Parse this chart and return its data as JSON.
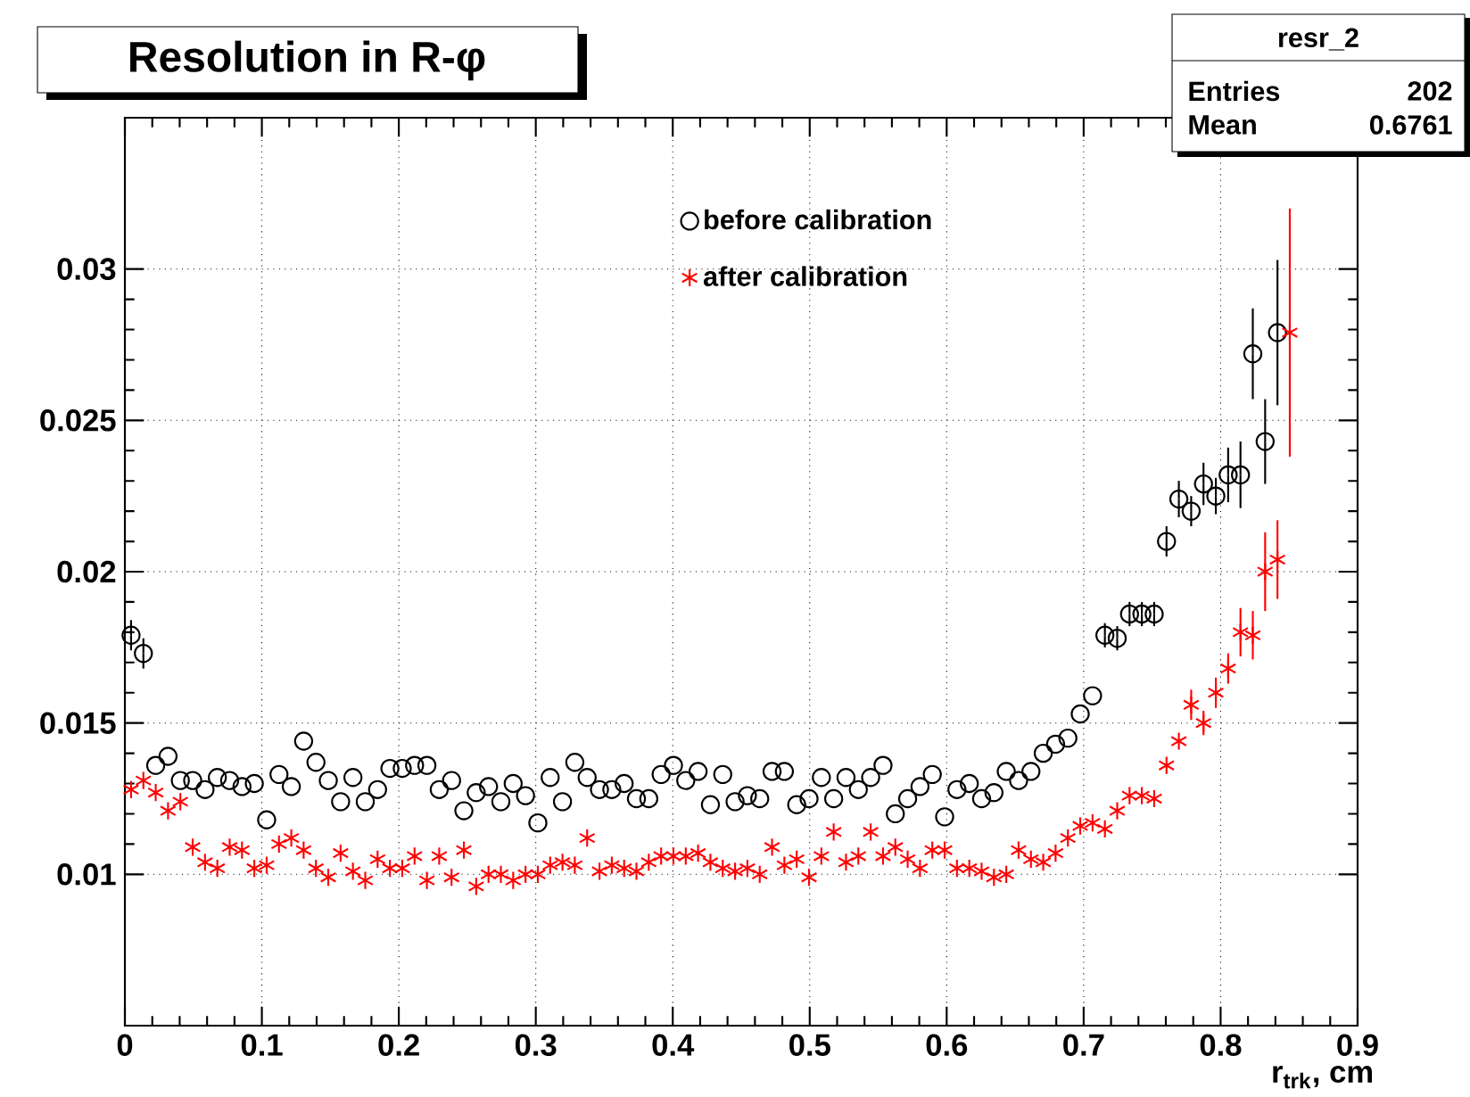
{
  "chart_data": {
    "type": "scatter",
    "title": "Resolution in R-φ",
    "xlabel": "r$_{trk}$, cm",
    "annotations": [
      "resr_2",
      "Entries",
      "202",
      "Mean",
      "0.6761"
    ],
    "x": [
      0.0045,
      0.0135,
      0.0225,
      0.0315,
      0.0405,
      0.0495,
      0.0585,
      0.0675,
      0.0765,
      0.0855,
      0.0945,
      0.1035,
      0.1125,
      0.1215,
      0.1305,
      0.1395,
      0.1485,
      0.1575,
      0.1665,
      0.1755,
      0.1845,
      0.1935,
      0.2025,
      0.2115,
      0.2205,
      0.2295,
      0.2385,
      0.2475,
      0.2565,
      0.2655,
      0.2745,
      0.2835,
      0.2925,
      0.3015,
      0.3105,
      0.3195,
      0.3285,
      0.3375,
      0.3465,
      0.3555,
      0.3645,
      0.3735,
      0.3825,
      0.3915,
      0.4005,
      0.4095,
      0.4185,
      0.4275,
      0.4365,
      0.4455,
      0.4545,
      0.4635,
      0.4725,
      0.4815,
      0.4905,
      0.4995,
      0.5085,
      0.5175,
      0.5265,
      0.5355,
      0.5445,
      0.5535,
      0.5625,
      0.5715,
      0.5805,
      0.5895,
      0.5985,
      0.6075,
      0.6165,
      0.6255,
      0.6345,
      0.6435,
      0.6525,
      0.6615,
      0.6705,
      0.6795,
      0.6885,
      0.6975,
      0.7065,
      0.7155,
      0.7245,
      0.7335,
      0.7425,
      0.7515,
      0.7605,
      0.7695,
      0.7785,
      0.7875,
      0.7965,
      0.8055,
      0.8145,
      0.8235,
      0.8325,
      0.8415,
      0.8505
    ],
    "series": [
      {
        "name": "before calibration",
        "color": "#000000",
        "marker": "circle",
        "values": [
          0.0179,
          0.0173,
          0.0136,
          0.0139,
          0.0131,
          0.0131,
          0.0128,
          0.0132,
          0.0131,
          0.0129,
          0.013,
          0.0118,
          0.0133,
          0.0129,
          0.0144,
          0.0137,
          0.0131,
          0.0124,
          0.0132,
          0.0124,
          0.0128,
          0.0135,
          0.0135,
          0.0136,
          0.0136,
          0.0128,
          0.0131,
          0.0121,
          0.0127,
          0.0129,
          0.0124,
          0.013,
          0.0126,
          0.0117,
          0.0132,
          0.0124,
          0.0137,
          0.0132,
          0.0128,
          0.0128,
          0.013,
          0.0125,
          0.0125,
          0.0133,
          0.0136,
          0.0131,
          0.0134,
          0.0123,
          0.0133,
          0.0124,
          0.0126,
          0.0125,
          0.0134,
          0.0134,
          0.0123,
          0.0125,
          0.0132,
          0.0125,
          0.0132,
          0.0128,
          0.0132,
          0.0136,
          0.012,
          0.0125,
          0.0129,
          0.0133,
          0.0119,
          0.0128,
          0.013,
          0.0125,
          0.0127,
          0.0134,
          0.0131,
          0.0134,
          0.014,
          0.0143,
          0.0145,
          0.0153,
          0.0159,
          0.0179,
          0.0178,
          0.0186,
          0.0186,
          0.0186,
          0.021,
          0.0224,
          0.022,
          0.0229,
          0.0225,
          0.0232,
          0.0232,
          0.0272,
          0.0243,
          0.0279,
          null
        ],
        "errors": [
          0.0005,
          0.0005,
          null,
          null,
          null,
          null,
          null,
          null,
          null,
          null,
          null,
          null,
          null,
          null,
          null,
          null,
          null,
          null,
          null,
          null,
          null,
          null,
          null,
          null,
          null,
          null,
          null,
          null,
          null,
          null,
          null,
          null,
          null,
          null,
          null,
          null,
          null,
          null,
          null,
          null,
          null,
          null,
          null,
          null,
          null,
          null,
          null,
          null,
          null,
          null,
          null,
          null,
          null,
          null,
          null,
          null,
          null,
          null,
          null,
          null,
          null,
          null,
          null,
          null,
          null,
          null,
          null,
          null,
          null,
          null,
          null,
          null,
          null,
          null,
          null,
          null,
          null,
          null,
          null,
          0.0004,
          0.0004,
          0.0004,
          0.0004,
          0.0004,
          0.0005,
          0.0006,
          0.0005,
          0.0007,
          0.0006,
          0.0009,
          0.0011,
          0.0015,
          0.0014,
          0.0024,
          null
        ]
      },
      {
        "name": "after calibration",
        "color": "#ff0000",
        "marker": "cross",
        "values": [
          0.0128,
          0.0131,
          0.0127,
          0.0121,
          0.0124,
          0.0109,
          0.0104,
          0.0102,
          0.0109,
          0.0108,
          0.0102,
          0.0103,
          0.011,
          0.0112,
          0.0108,
          0.0102,
          0.0099,
          0.0107,
          0.0101,
          0.0098,
          0.0105,
          0.0102,
          0.0102,
          0.0106,
          0.0098,
          0.0106,
          0.0099,
          0.0108,
          0.0096,
          0.01,
          0.01,
          0.0098,
          0.01,
          0.01,
          0.0103,
          0.0104,
          0.0103,
          0.0112,
          0.0101,
          0.0103,
          0.0102,
          0.0101,
          0.0104,
          0.0106,
          0.0106,
          0.0106,
          0.0107,
          0.0104,
          0.0102,
          0.0101,
          0.0102,
          0.01,
          0.0109,
          0.0103,
          0.0105,
          0.0099,
          0.0106,
          0.0114,
          0.0104,
          0.0106,
          0.0114,
          0.0106,
          0.0109,
          0.0105,
          0.0102,
          0.0108,
          0.0108,
          0.0102,
          0.0102,
          0.0101,
          0.0099,
          0.01,
          0.0108,
          0.0105,
          0.0104,
          0.0107,
          0.0112,
          0.0116,
          0.0117,
          0.0115,
          0.0121,
          0.0126,
          0.0126,
          0.0125,
          0.0136,
          0.0144,
          0.0156,
          0.015,
          0.016,
          0.0168,
          0.018,
          0.0179,
          0.02,
          0.0204,
          0.0279
        ],
        "errors": [
          null,
          null,
          null,
          null,
          null,
          null,
          null,
          null,
          null,
          null,
          null,
          null,
          null,
          null,
          null,
          null,
          null,
          null,
          null,
          null,
          null,
          null,
          null,
          null,
          null,
          null,
          null,
          null,
          null,
          null,
          null,
          null,
          null,
          null,
          null,
          null,
          null,
          null,
          null,
          null,
          null,
          null,
          null,
          null,
          null,
          null,
          null,
          null,
          null,
          null,
          null,
          null,
          null,
          null,
          null,
          null,
          null,
          null,
          null,
          null,
          null,
          null,
          null,
          null,
          null,
          null,
          null,
          null,
          null,
          null,
          null,
          null,
          null,
          null,
          null,
          null,
          null,
          null,
          null,
          null,
          null,
          null,
          null,
          null,
          null,
          null,
          0.0005,
          0.0004,
          0.0005,
          0.0005,
          0.0008,
          0.0008,
          0.0013,
          0.0013,
          0.0041
        ]
      }
    ],
    "xlim": [
      0,
      0.9
    ],
    "xticks": [
      0,
      0.1,
      0.2,
      0.3,
      0.4,
      0.5,
      0.6,
      0.7,
      0.8,
      0.9
    ],
    "ylim": [
      0.005,
      0.035
    ],
    "yticks": [
      0.01,
      0.015,
      0.02,
      0.025,
      0.03
    ],
    "grid": true,
    "legend": "top"
  }
}
